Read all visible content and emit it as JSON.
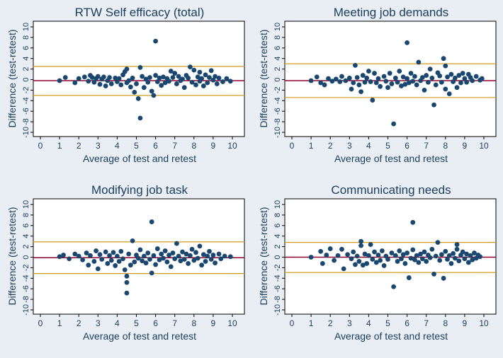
{
  "colors": {
    "background": "#e8eef3",
    "plot_area": "#ffffff",
    "points": "#1a476f",
    "mean_line": "#90002e",
    "limit_lines": "#cf9b1d",
    "text": "#1a3d5e"
  },
  "chart_data": [
    {
      "type": "scatter",
      "title": "RTW Self efficacy (total)",
      "xlabel": "Average of test and retest",
      "ylabel": "Difference (test-retest)",
      "xlim": [
        0,
        10
      ],
      "ylim": [
        -10,
        10
      ],
      "xticks": [
        0,
        1,
        2,
        3,
        4,
        5,
        6,
        7,
        8,
        9,
        10
      ],
      "yticks": [
        10,
        8,
        6,
        4,
        2,
        0,
        -2,
        -4,
        -6,
        -8,
        -10
      ],
      "mean_diff": -0.2,
      "loa_upper": 2.5,
      "loa_lower": -3.0,
      "points": [
        [
          1.0,
          -0.2
        ],
        [
          1.3,
          0.4
        ],
        [
          1.8,
          -0.6
        ],
        [
          2.0,
          0.2
        ],
        [
          2.3,
          0.5
        ],
        [
          2.5,
          -0.3
        ],
        [
          2.6,
          0.8
        ],
        [
          2.7,
          0.4
        ],
        [
          2.8,
          -0.5
        ],
        [
          2.9,
          0.2
        ],
        [
          3.0,
          0.6
        ],
        [
          3.1,
          -0.9
        ],
        [
          3.2,
          0.1
        ],
        [
          3.3,
          0.5
        ],
        [
          3.4,
          -1.2
        ],
        [
          3.5,
          -0.2
        ],
        [
          3.6,
          0.4
        ],
        [
          3.7,
          -0.8
        ],
        [
          3.9,
          0.3
        ],
        [
          4.0,
          -0.4
        ],
        [
          4.1,
          0.2
        ],
        [
          4.2,
          -1.0
        ],
        [
          4.3,
          0.9
        ],
        [
          4.4,
          1.5
        ],
        [
          4.5,
          2.0
        ],
        [
          4.5,
          -0.6
        ],
        [
          4.6,
          -0.2
        ],
        [
          4.7,
          -1.4
        ],
        [
          4.8,
          0.3
        ],
        [
          4.9,
          -2.4
        ],
        [
          5.0,
          -0.8
        ],
        [
          5.1,
          -3.6
        ],
        [
          5.2,
          -7.3
        ],
        [
          5.2,
          2.3
        ],
        [
          5.3,
          0.6
        ],
        [
          5.4,
          -1.5
        ],
        [
          5.5,
          0.1
        ],
        [
          5.6,
          -0.5
        ],
        [
          5.7,
          0.4
        ],
        [
          5.8,
          -2.2
        ],
        [
          5.9,
          -3.0
        ],
        [
          6.0,
          7.3
        ],
        [
          6.0,
          0.8
        ],
        [
          6.1,
          -0.4
        ],
        [
          6.2,
          0.3
        ],
        [
          6.3,
          -1.1
        ],
        [
          6.4,
          0.5
        ],
        [
          6.5,
          -0.6
        ],
        [
          6.6,
          0.2
        ],
        [
          6.7,
          -0.3
        ],
        [
          6.8,
          1.6
        ],
        [
          6.9,
          0.4
        ],
        [
          7.0,
          1.2
        ],
        [
          7.1,
          -0.8
        ],
        [
          7.2,
          0.6
        ],
        [
          7.3,
          -0.2
        ],
        [
          7.4,
          0.1
        ],
        [
          7.5,
          -1.5
        ],
        [
          7.6,
          0.8
        ],
        [
          7.7,
          0.3
        ],
        [
          7.8,
          2.4
        ],
        [
          7.9,
          -0.5
        ],
        [
          8.0,
          1.8
        ],
        [
          8.1,
          -1.0
        ],
        [
          8.2,
          0.5
        ],
        [
          8.3,
          1.4
        ],
        [
          8.3,
          -0.3
        ],
        [
          8.4,
          0.2
        ],
        [
          8.5,
          -1.2
        ],
        [
          8.6,
          0.9
        ],
        [
          8.7,
          -0.6
        ],
        [
          8.8,
          0.4
        ],
        [
          8.9,
          1.7
        ],
        [
          9.0,
          -0.1
        ],
        [
          9.1,
          0.6
        ],
        [
          9.2,
          -0.8
        ],
        [
          9.3,
          0.3
        ],
        [
          9.5,
          -0.4
        ],
        [
          9.7,
          0.2
        ],
        [
          9.9,
          -0.3
        ]
      ]
    },
    {
      "type": "scatter",
      "title": "Meeting job demands",
      "xlabel": "Average of test and retest",
      "ylabel": "Difference (test-retest)",
      "xlim": [
        0,
        10
      ],
      "ylim": [
        -10,
        10
      ],
      "xticks": [
        0,
        1,
        2,
        3,
        4,
        5,
        6,
        7,
        8,
        9,
        10
      ],
      "yticks": [
        10,
        8,
        6,
        4,
        2,
        0,
        -2,
        -4,
        -6,
        -8,
        -10
      ],
      "mean_diff": -0.2,
      "loa_upper": 3.0,
      "loa_lower": -3.4,
      "points": [
        [
          1.0,
          -0.2
        ],
        [
          1.3,
          0.5
        ],
        [
          1.5,
          -0.6
        ],
        [
          1.7,
          -1.0
        ],
        [
          1.9,
          0.2
        ],
        [
          2.1,
          -0.3
        ],
        [
          2.3,
          0.1
        ],
        [
          2.5,
          -0.4
        ],
        [
          2.6,
          0.6
        ],
        [
          2.8,
          -0.2
        ],
        [
          3.0,
          0.3
        ],
        [
          3.1,
          -1.8
        ],
        [
          3.2,
          -0.6
        ],
        [
          3.3,
          2.7
        ],
        [
          3.4,
          0.4
        ],
        [
          3.5,
          -1.0
        ],
        [
          3.6,
          -2.3
        ],
        [
          3.7,
          0.8
        ],
        [
          3.8,
          -0.5
        ],
        [
          3.9,
          0.3
        ],
        [
          4.0,
          1.6
        ],
        [
          4.1,
          -0.4
        ],
        [
          4.2,
          -3.9
        ],
        [
          4.3,
          1.2
        ],
        [
          4.4,
          -0.6
        ],
        [
          4.5,
          0.2
        ],
        [
          4.6,
          -1.3
        ],
        [
          4.8,
          0.6
        ],
        [
          4.9,
          -0.3
        ],
        [
          5.0,
          -1.5
        ],
        [
          5.1,
          1.2
        ],
        [
          5.2,
          -0.8
        ],
        [
          5.3,
          -8.4
        ],
        [
          5.4,
          0.3
        ],
        [
          5.5,
          -0.5
        ],
        [
          5.6,
          1.6
        ],
        [
          5.7,
          -1.2
        ],
        [
          5.8,
          0.5
        ],
        [
          5.9,
          -0.9
        ],
        [
          6.0,
          7.0
        ],
        [
          6.0,
          0.2
        ],
        [
          6.1,
          -0.6
        ],
        [
          6.2,
          1.2
        ],
        [
          6.3,
          -0.3
        ],
        [
          6.4,
          0.6
        ],
        [
          6.5,
          -1.0
        ],
        [
          6.6,
          3.3
        ],
        [
          6.7,
          -0.2
        ],
        [
          6.8,
          0.4
        ],
        [
          6.9,
          -2.0
        ],
        [
          7.0,
          0.8
        ],
        [
          7.1,
          -0.5
        ],
        [
          7.2,
          2.0
        ],
        [
          7.3,
          0.3
        ],
        [
          7.4,
          -4.8
        ],
        [
          7.5,
          -1.0
        ],
        [
          7.6,
          1.3
        ],
        [
          7.7,
          0.7
        ],
        [
          7.8,
          -0.5
        ],
        [
          7.9,
          4.0
        ],
        [
          8.0,
          2.6
        ],
        [
          8.0,
          -1.8
        ],
        [
          8.1,
          0.5
        ],
        [
          8.2,
          -2.7
        ],
        [
          8.3,
          1.0
        ],
        [
          8.4,
          -0.4
        ],
        [
          8.5,
          0.3
        ],
        [
          8.6,
          -1.5
        ],
        [
          8.7,
          0.8
        ],
        [
          8.8,
          -0.6
        ],
        [
          8.9,
          1.2
        ],
        [
          9.0,
          0.2
        ],
        [
          9.1,
          -0.5
        ],
        [
          9.2,
          1.0
        ],
        [
          9.3,
          0.4
        ],
        [
          9.4,
          -0.2
        ],
        [
          9.6,
          0.6
        ],
        [
          9.8,
          -0.1
        ],
        [
          9.9,
          0.2
        ]
      ]
    },
    {
      "type": "scatter",
      "title": "Modifying job task",
      "xlabel": "Average of test and retest",
      "ylabel": "Difference (test-retest)",
      "xlim": [
        0,
        10
      ],
      "ylim": [
        -10,
        10
      ],
      "xticks": [
        0,
        1,
        2,
        3,
        4,
        5,
        6,
        7,
        8,
        9,
        10
      ],
      "yticks": [
        10,
        8,
        6,
        4,
        2,
        0,
        -2,
        -4,
        -6,
        -8,
        -10
      ],
      "mean_diff": -0.1,
      "loa_upper": 2.9,
      "loa_lower": -3.1,
      "points": [
        [
          1.0,
          0.1
        ],
        [
          1.2,
          0.4
        ],
        [
          1.5,
          -0.3
        ],
        [
          1.8,
          0.6
        ],
        [
          2.0,
          0.2
        ],
        [
          2.2,
          -0.5
        ],
        [
          2.4,
          0.8
        ],
        [
          2.5,
          -1.5
        ],
        [
          2.6,
          0.3
        ],
        [
          2.8,
          -0.8
        ],
        [
          2.9,
          1.2
        ],
        [
          3.0,
          -2.2
        ],
        [
          3.1,
          0.5
        ],
        [
          3.2,
          -0.4
        ],
        [
          3.4,
          1.0
        ],
        [
          3.5,
          -1.2
        ],
        [
          3.6,
          0.3
        ],
        [
          3.7,
          -0.6
        ],
        [
          3.8,
          0.9
        ],
        [
          3.9,
          -1.6
        ],
        [
          4.0,
          0.2
        ],
        [
          4.1,
          -0.8
        ],
        [
          4.2,
          1.1
        ],
        [
          4.3,
          -0.3
        ],
        [
          4.4,
          -2.4
        ],
        [
          4.5,
          -3.6
        ],
        [
          4.5,
          -4.8
        ],
        [
          4.5,
          -6.8
        ],
        [
          4.6,
          0.6
        ],
        [
          4.7,
          -1.5
        ],
        [
          4.8,
          3.1
        ],
        [
          4.9,
          -0.9
        ],
        [
          5.0,
          0.4
        ],
        [
          5.1,
          -0.2
        ],
        [
          5.2,
          1.4
        ],
        [
          5.3,
          -0.7
        ],
        [
          5.4,
          0.2
        ],
        [
          5.5,
          -1.1
        ],
        [
          5.6,
          0.8
        ],
        [
          5.7,
          -0.4
        ],
        [
          5.8,
          6.7
        ],
        [
          5.8,
          -3.0
        ],
        [
          5.9,
          0.3
        ],
        [
          6.0,
          -1.4
        ],
        [
          6.1,
          1.6
        ],
        [
          6.2,
          -0.5
        ],
        [
          6.3,
          0.6
        ],
        [
          6.4,
          -0.2
        ],
        [
          6.5,
          1.2
        ],
        [
          6.6,
          -0.9
        ],
        [
          6.7,
          0.4
        ],
        [
          6.8,
          -1.8
        ],
        [
          6.9,
          0.8
        ],
        [
          7.0,
          -0.3
        ],
        [
          7.1,
          2.6
        ],
        [
          7.2,
          0.2
        ],
        [
          7.3,
          -0.7
        ],
        [
          7.4,
          1.0
        ],
        [
          7.5,
          -0.4
        ],
        [
          7.6,
          0.6
        ],
        [
          7.7,
          -1.2
        ],
        [
          7.8,
          0.3
        ],
        [
          7.9,
          1.5
        ],
        [
          8.0,
          -0.6
        ],
        [
          8.1,
          0.9
        ],
        [
          8.2,
          -0.2
        ],
        [
          8.3,
          2.1
        ],
        [
          8.4,
          -1.5
        ],
        [
          8.5,
          0.5
        ],
        [
          8.6,
          -0.8
        ],
        [
          8.7,
          0.2
        ],
        [
          8.8,
          1.1
        ],
        [
          8.9,
          -0.4
        ],
        [
          9.0,
          0.4
        ],
        [
          9.1,
          -1.1
        ],
        [
          9.3,
          0.6
        ],
        [
          9.4,
          -0.3
        ],
        [
          9.6,
          0.2
        ],
        [
          9.9,
          0.1
        ]
      ]
    },
    {
      "type": "scatter",
      "title": "Communicating needs",
      "xlabel": "Average of test and retest",
      "ylabel": "Difference (test-retest)",
      "xlim": [
        0,
        10
      ],
      "ylim": [
        -10,
        10
      ],
      "xticks": [
        0,
        1,
        2,
        3,
        4,
        5,
        6,
        7,
        8,
        9,
        10
      ],
      "yticks": [
        10,
        8,
        6,
        4,
        2,
        0,
        -2,
        -4,
        -6,
        -8,
        -10
      ],
      "mean_diff": 0.0,
      "loa_upper": 2.8,
      "loa_lower": -2.9,
      "points": [
        [
          1.0,
          0.0
        ],
        [
          1.5,
          1.1
        ],
        [
          1.6,
          -1.2
        ],
        [
          1.8,
          0.4
        ],
        [
          2.0,
          1.6
        ],
        [
          2.2,
          -0.6
        ],
        [
          2.4,
          0.3
        ],
        [
          2.6,
          1.5
        ],
        [
          2.7,
          -2.2
        ],
        [
          2.9,
          0.5
        ],
        [
          3.1,
          -0.3
        ],
        [
          3.2,
          1.0
        ],
        [
          3.3,
          -1.4
        ],
        [
          3.4,
          0.2
        ],
        [
          3.5,
          -0.8
        ],
        [
          3.6,
          3.0
        ],
        [
          3.6,
          2.2
        ],
        [
          3.7,
          -1.5
        ],
        [
          3.8,
          0.6
        ],
        [
          3.9,
          -1.2
        ],
        [
          4.0,
          0.3
        ],
        [
          4.1,
          2.4
        ],
        [
          4.2,
          -0.4
        ],
        [
          4.3,
          1.0
        ],
        [
          4.4,
          -1.0
        ],
        [
          4.5,
          0.4
        ],
        [
          4.6,
          -0.6
        ],
        [
          4.7,
          1.2
        ],
        [
          4.8,
          -1.6
        ],
        [
          4.9,
          0.2
        ],
        [
          5.0,
          -0.4
        ],
        [
          5.2,
          0.8
        ],
        [
          5.3,
          -5.6
        ],
        [
          5.4,
          0.3
        ],
        [
          5.5,
          -0.8
        ],
        [
          5.6,
          1.2
        ],
        [
          5.7,
          -0.3
        ],
        [
          5.8,
          0.5
        ],
        [
          5.9,
          -1.2
        ],
        [
          6.0,
          0.8
        ],
        [
          6.1,
          -3.9
        ],
        [
          6.2,
          -0.2
        ],
        [
          6.3,
          6.6
        ],
        [
          6.3,
          1.4
        ],
        [
          6.4,
          -0.5
        ],
        [
          6.5,
          0.3
        ],
        [
          6.6,
          -1.0
        ],
        [
          6.7,
          0.6
        ],
        [
          6.8,
          -0.3
        ],
        [
          6.9,
          1.0
        ],
        [
          7.0,
          -0.8
        ],
        [
          7.1,
          0.4
        ],
        [
          7.2,
          -0.1
        ],
        [
          7.3,
          1.5
        ],
        [
          7.4,
          -3.2
        ],
        [
          7.5,
          0.2
        ],
        [
          7.6,
          2.8
        ],
        [
          7.7,
          -0.6
        ],
        [
          7.8,
          0.5
        ],
        [
          7.9,
          -4.0
        ],
        [
          8.0,
          1.1
        ],
        [
          8.1,
          -0.4
        ],
        [
          8.2,
          0.3
        ],
        [
          8.3,
          -1.2
        ],
        [
          8.4,
          0.7
        ],
        [
          8.5,
          -0.2
        ],
        [
          8.6,
          2.4
        ],
        [
          8.6,
          1.5
        ],
        [
          8.7,
          -0.7
        ],
        [
          8.8,
          0.4
        ],
        [
          8.9,
          1.0
        ],
        [
          9.0,
          -0.3
        ],
        [
          9.1,
          0.6
        ],
        [
          9.2,
          -1.0
        ],
        [
          9.3,
          0.3
        ],
        [
          9.4,
          -0.5
        ],
        [
          9.5,
          0.8
        ],
        [
          9.6,
          -0.2
        ],
        [
          9.7,
          0.4
        ],
        [
          9.8,
          0.1
        ]
      ]
    }
  ]
}
